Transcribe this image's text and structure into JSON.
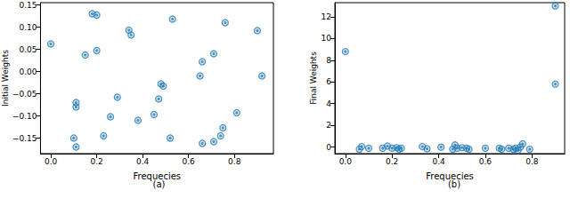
{
  "chart_data": [
    {
      "type": "scatter",
      "subtitle": "(a)",
      "x_label": "Frequecies",
      "y_label": "Initial Weights",
      "color": "#1f77b4",
      "marker": "circle",
      "grid": false,
      "xlim": [
        -0.045,
        0.97
      ],
      "xticks": [
        {
          "value": 0,
          "label": "0.0"
        },
        {
          "value": 0.2,
          "label": "0.2"
        },
        {
          "value": 0.4,
          "label": "0.4"
        },
        {
          "value": 0.6,
          "label": "0.6"
        },
        {
          "value": 0.8,
          "label": "0.8"
        }
      ],
      "ylim": [
        -0.185,
        0.155
      ],
      "yticks": [
        {
          "value": -0.15,
          "label": "−0.15"
        },
        {
          "value": -0.1,
          "label": "−0.10"
        },
        {
          "value": -0.05,
          "label": "−0.05"
        },
        {
          "value": 0,
          "label": "0.00"
        },
        {
          "value": 0.05,
          "label": "0.05"
        },
        {
          "value": 0.1,
          "label": "0.10"
        },
        {
          "value": 0.15,
          "label": "0.15"
        }
      ],
      "x": [
        0.0,
        0.1,
        0.11,
        0.11,
        0.11,
        0.15,
        0.18,
        0.2,
        0.2,
        0.23,
        0.26,
        0.29,
        0.34,
        0.35,
        0.38,
        0.45,
        0.47,
        0.48,
        0.49,
        0.52,
        0.53,
        0.65,
        0.66,
        0.66,
        0.71,
        0.71,
        0.74,
        0.75,
        0.76,
        0.81,
        0.9,
        0.92
      ],
      "values": [
        0.062,
        -0.15,
        -0.07,
        -0.08,
        -0.17,
        0.037,
        0.13,
        0.127,
        0.047,
        -0.145,
        -0.102,
        -0.058,
        0.093,
        0.082,
        -0.11,
        -0.097,
        -0.062,
        -0.028,
        -0.033,
        -0.15,
        0.118,
        -0.01,
        -0.162,
        0.022,
        0.04,
        -0.158,
        -0.145,
        -0.127,
        0.11,
        -0.093,
        0.092,
        -0.01
      ]
    },
    {
      "type": "scatter",
      "subtitle": "(b)",
      "x_label": "Frequecies",
      "y_label": "Final Weights",
      "color": "#1f77b4",
      "marker": "circle",
      "grid": false,
      "xlim": [
        -0.045,
        0.94
      ],
      "xticks": [
        {
          "value": 0,
          "label": "0.0"
        },
        {
          "value": 0.2,
          "label": "0.2"
        },
        {
          "value": 0.4,
          "label": "0.4"
        },
        {
          "value": 0.6,
          "label": "0.6"
        },
        {
          "value": 0.8,
          "label": "0.8"
        }
      ],
      "ylim": [
        -0.6,
        13.3
      ],
      "yticks": [
        0,
        2,
        4,
        6,
        8,
        10,
        12
      ],
      "x": [
        0.0,
        0.06,
        0.07,
        0.1,
        0.16,
        0.18,
        0.2,
        0.22,
        0.23,
        0.24,
        0.33,
        0.35,
        0.41,
        0.46,
        0.47,
        0.48,
        0.5,
        0.52,
        0.53,
        0.6,
        0.66,
        0.67,
        0.7,
        0.72,
        0.73,
        0.74,
        0.75,
        0.76,
        0.79,
        0.9,
        0.9
      ],
      "values": [
        8.8,
        -0.2,
        0.05,
        -0.1,
        -0.1,
        0.1,
        -0.1,
        -0.05,
        -0.2,
        -0.1,
        0.05,
        -0.15,
        0.0,
        -0.2,
        0.2,
        -0.1,
        -0.05,
        -0.1,
        -0.2,
        -0.1,
        -0.1,
        -0.2,
        -0.1,
        -0.2,
        -0.1,
        -0.3,
        0.0,
        0.3,
        -0.2,
        13.0,
        5.8
      ]
    }
  ]
}
